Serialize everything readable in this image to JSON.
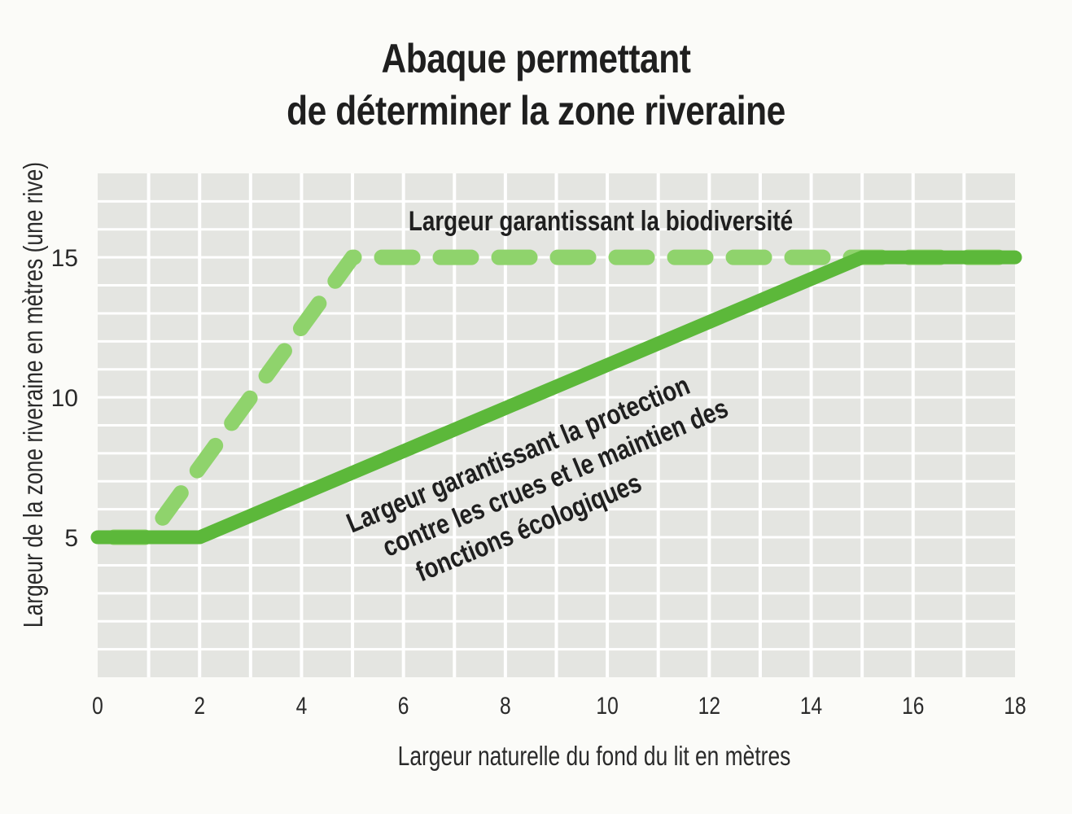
{
  "chart_data": {
    "type": "line",
    "title": [
      "Abaque permettant",
      "de déterminer la zone riveraine"
    ],
    "xlabel": "Largeur naturelle du fond du lit en mètres",
    "ylabel": "Largeur de la zone riveraine en mètres (une rive)",
    "xlim": [
      0,
      18
    ],
    "ylim": [
      0,
      18
    ],
    "x_ticks": [
      0,
      2,
      4,
      6,
      8,
      10,
      12,
      14,
      16,
      18
    ],
    "y_ticks": [
      5,
      10,
      15
    ],
    "grid": true,
    "series": [
      {
        "name": "Largeur garantissant la biodiversité",
        "style": "dashed",
        "color": "#8fd36c",
        "x": [
          0,
          1,
          5,
          18
        ],
        "y": [
          5,
          5,
          15,
          15
        ]
      },
      {
        "name": "Largeur garantissant la protection contre les crues et le maintien des fonctions écologiques",
        "style": "solid",
        "color": "#5cb83a",
        "x": [
          0,
          2,
          15,
          18
        ],
        "y": [
          5,
          5,
          15,
          15
        ]
      }
    ],
    "annotations": [
      {
        "series_index": 0,
        "lines": [
          "Largeur garantissant la biodiversité"
        ]
      },
      {
        "series_index": 1,
        "lines": [
          "Largeur garantissant la protection",
          "contre les crues et le maintien des",
          "fonctions écologiques"
        ]
      }
    ]
  }
}
